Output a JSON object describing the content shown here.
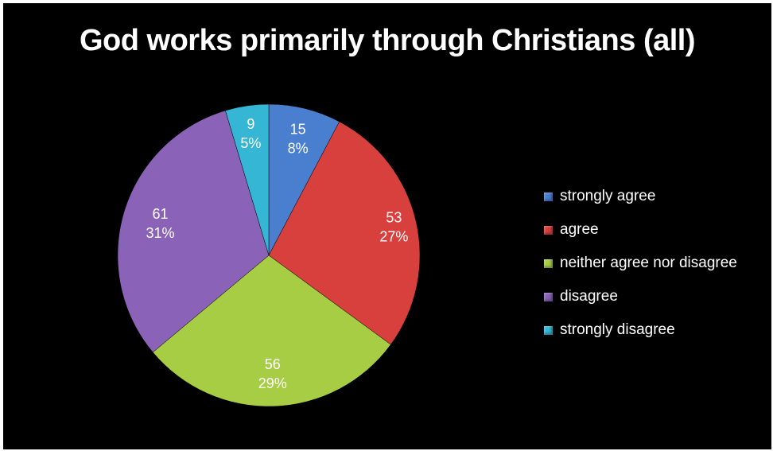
{
  "chart_data": {
    "type": "pie",
    "title": "God works primarily through Christians (all)",
    "categories": [
      "strongly agree",
      "agree",
      "neither agree nor disagree",
      "disagree",
      "strongly disagree"
    ],
    "values": [
      15,
      53,
      56,
      61,
      9
    ],
    "percent_labels": [
      "8%",
      "27%",
      "29%",
      "31%",
      "5%"
    ],
    "colors": [
      "#4a7fd0",
      "#d7403c",
      "#a7cd45",
      "#8a63b8",
      "#35b6d4"
    ],
    "legend_position": "right"
  }
}
